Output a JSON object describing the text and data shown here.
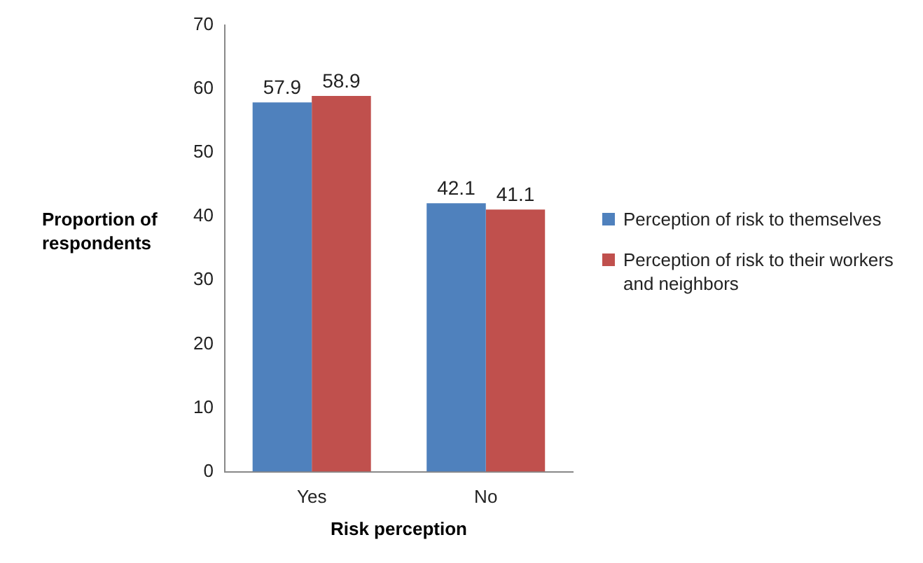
{
  "chart_data": {
    "type": "bar",
    "xlabel": "Risk perception",
    "ylabel": "Proportion of respondents",
    "categories": [
      "Yes",
      "No"
    ],
    "series": [
      {
        "name": "Perception of risk to themselves",
        "color": "#4f81bd",
        "values": [
          57.9,
          42.1
        ]
      },
      {
        "name": "Perception of risk to their workers and neighbors",
        "color": "#c0504d",
        "values": [
          58.9,
          41.1
        ]
      }
    ],
    "ylim": [
      0,
      70
    ],
    "yticks": [
      0,
      10,
      20,
      30,
      40,
      50,
      60,
      70
    ],
    "data_labels": true,
    "legend": "right"
  }
}
